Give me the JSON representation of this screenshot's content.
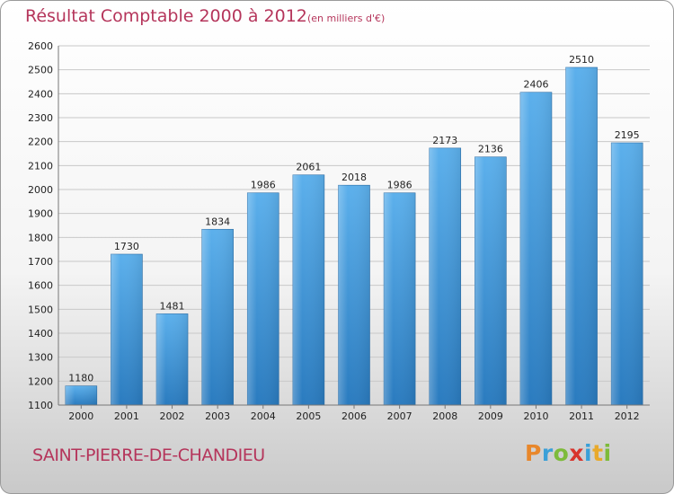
{
  "title": "Résultat Comptable 2000 à 2012",
  "subtitle": "(en milliers d'€)",
  "commune": "SAINT-PIERRE-DE-CHANDIEU",
  "logo": {
    "letters": [
      {
        "char": "P",
        "color": "#e8872b"
      },
      {
        "char": "r",
        "color": "#3aa0d8"
      },
      {
        "char": "o",
        "color": "#7dbb3a"
      },
      {
        "char": "x",
        "color": "#d8342c"
      },
      {
        "char": "i",
        "color": "#3aa0d8"
      },
      {
        "char": "t",
        "color": "#e8a92b"
      },
      {
        "char": "i",
        "color": "#7dbb3a"
      }
    ]
  },
  "colors": {
    "accent": "#b5355b",
    "bar_light": "#5cb0ec",
    "bar_dark": "#2a7bbf",
    "grid": "#c8c8c8"
  },
  "chart_data": {
    "type": "bar",
    "title": "Résultat Comptable 2000 à 2012",
    "subtitle": "(en milliers d'€)",
    "categories": [
      "2000",
      "2001",
      "2002",
      "2003",
      "2004",
      "2005",
      "2006",
      "2007",
      "2008",
      "2009",
      "2010",
      "2011",
      "2012"
    ],
    "values": [
      1180,
      1730,
      1481,
      1834,
      1986,
      2061,
      2018,
      1986,
      2173,
      2136,
      2406,
      2510,
      2195
    ],
    "ylim": [
      1100,
      2600
    ],
    "yticks": [
      1100,
      1200,
      1300,
      1400,
      1500,
      1600,
      1700,
      1800,
      1900,
      2000,
      2100,
      2200,
      2300,
      2400,
      2500,
      2600
    ],
    "grid": true,
    "xlabel": "",
    "ylabel": ""
  }
}
